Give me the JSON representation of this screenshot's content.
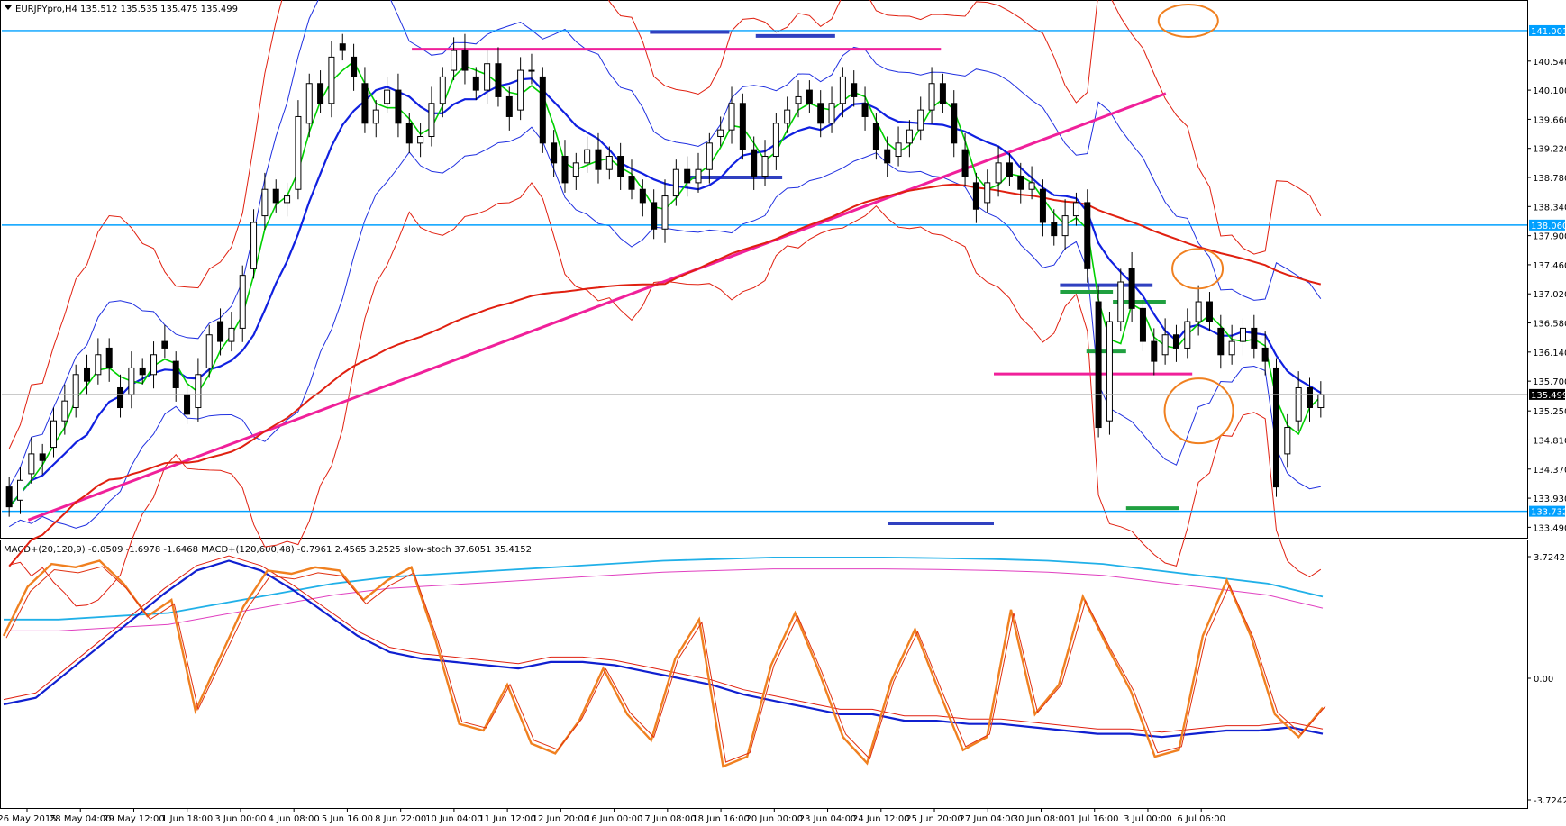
{
  "chart_data": {
    "type": "candlestick",
    "symbol_header": "EURJPYpro,H4  135.512 135.535 135.475 135.499",
    "current_price_label": "135.499",
    "price_axis": {
      "ticks": [
        "141.001",
        "140.540",
        "140.100",
        "139.660",
        "139.220",
        "138.780",
        "138.340",
        "138.060",
        "137.900",
        "137.460",
        "137.020",
        "136.580",
        "136.140",
        "135.700",
        "135.250",
        "134.810",
        "134.370",
        "133.930",
        "133.732",
        "133.490"
      ],
      "ylim": [
        133.4,
        141.3
      ]
    },
    "horizontal_levels": [
      {
        "price": 141.001,
        "label": "141.001",
        "color": "#00a0ff"
      },
      {
        "price": 138.06,
        "label": "138.060",
        "color": "#00a0ff"
      },
      {
        "price": 133.732,
        "label": "133.732",
        "color": "#00a0ff"
      }
    ],
    "time_axis": [
      "26 May 2015",
      "28 May 04:00",
      "29 May 12:00",
      "1 Jun 18:00",
      "3 Jun 00:00",
      "4 Jun 08:00",
      "5 Jun 16:00",
      "8 Jun 22:00",
      "10 Jun 04:00",
      "11 Jun 12:00",
      "12 Jun 20:00",
      "16 Jun 00:00",
      "17 Jun 08:00",
      "18 Jun 16:00",
      "20 Jun 00:00",
      "23 Jun 04:00",
      "24 Jun 12:00",
      "25 Jun 20:00",
      "27 Jun 04:00",
      "30 Jun 08:00",
      "1 Jul 16:00",
      "3 Jul 00:00",
      "6 Jul 06:00"
    ],
    "price_series": [
      [
        134.1,
        133.8
      ],
      [
        133.9,
        134.2
      ],
      [
        134.3,
        134.6
      ],
      [
        134.6,
        134.5
      ],
      [
        134.7,
        135.1
      ],
      [
        135.1,
        135.4
      ],
      [
        135.3,
        135.8
      ],
      [
        135.9,
        135.7
      ],
      [
        135.8,
        136.1
      ],
      [
        136.2,
        135.9
      ],
      [
        135.6,
        135.3
      ],
      [
        135.5,
        135.9
      ],
      [
        135.9,
        135.8
      ],
      [
        135.8,
        136.1
      ],
      [
        136.3,
        136.2
      ],
      [
        136.0,
        135.6
      ],
      [
        135.5,
        135.2
      ],
      [
        135.3,
        135.8
      ],
      [
        135.9,
        136.4
      ],
      [
        136.6,
        136.3
      ],
      [
        136.3,
        136.5
      ],
      [
        136.5,
        137.3
      ],
      [
        137.4,
        138.1
      ],
      [
        138.2,
        138.6
      ],
      [
        138.6,
        138.4
      ],
      [
        138.4,
        138.5
      ],
      [
        138.6,
        139.7
      ],
      [
        139.6,
        140.2
      ],
      [
        140.2,
        139.9
      ],
      [
        139.9,
        140.6
      ],
      [
        140.8,
        140.7
      ],
      [
        140.6,
        140.3
      ],
      [
        140.2,
        139.6
      ],
      [
        139.6,
        139.8
      ],
      [
        139.9,
        140.1
      ],
      [
        140.1,
        139.6
      ],
      [
        139.6,
        139.3
      ],
      [
        139.3,
        139.4
      ],
      [
        139.4,
        139.9
      ],
      [
        139.9,
        140.3
      ],
      [
        140.4,
        140.7
      ],
      [
        140.7,
        140.4
      ],
      [
        140.3,
        140.1
      ],
      [
        140.1,
        140.5
      ],
      [
        140.5,
        140.0
      ],
      [
        140.0,
        139.7
      ],
      [
        139.8,
        140.4
      ],
      [
        140.4,
        140.4
      ],
      [
        140.3,
        139.3
      ],
      [
        139.3,
        139.0
      ],
      [
        139.1,
        138.7
      ],
      [
        138.8,
        139.0
      ],
      [
        139.0,
        139.2
      ],
      [
        139.2,
        138.9
      ],
      [
        138.9,
        139.1
      ],
      [
        139.1,
        138.8
      ],
      [
        138.8,
        138.6
      ],
      [
        138.6,
        138.4
      ],
      [
        138.4,
        138.0
      ],
      [
        138.0,
        138.5
      ],
      [
        138.5,
        138.9
      ],
      [
        138.9,
        138.7
      ],
      [
        138.7,
        138.9
      ],
      [
        138.9,
        139.3
      ],
      [
        139.4,
        139.5
      ],
      [
        139.5,
        139.9
      ],
      [
        139.9,
        139.2
      ],
      [
        139.2,
        138.8
      ],
      [
        138.8,
        139.1
      ],
      [
        139.1,
        139.6
      ],
      [
        139.6,
        139.8
      ],
      [
        139.9,
        140.0
      ],
      [
        140.1,
        139.9
      ],
      [
        139.9,
        139.6
      ],
      [
        139.6,
        139.9
      ],
      [
        139.9,
        140.3
      ],
      [
        140.2,
        140.0
      ],
      [
        139.9,
        139.7
      ],
      [
        139.6,
        139.2
      ],
      [
        139.2,
        139.0
      ],
      [
        139.1,
        139.3
      ],
      [
        139.3,
        139.5
      ],
      [
        139.5,
        139.8
      ],
      [
        139.8,
        140.2
      ],
      [
        140.2,
        139.9
      ],
      [
        139.9,
        139.3
      ],
      [
        139.2,
        138.8
      ],
      [
        138.7,
        138.3
      ],
      [
        138.4,
        138.7
      ],
      [
        138.7,
        139.0
      ],
      [
        139.0,
        138.8
      ],
      [
        138.8,
        138.6
      ],
      [
        138.6,
        138.7
      ],
      [
        138.6,
        138.1
      ],
      [
        138.1,
        137.9
      ],
      [
        137.9,
        138.2
      ],
      [
        138.2,
        138.4
      ],
      [
        138.4,
        137.4
      ],
      [
        136.9,
        135.0
      ],
      [
        135.1,
        136.6
      ],
      [
        136.6,
        137.2
      ],
      [
        137.4,
        136.8
      ],
      [
        136.8,
        136.3
      ],
      [
        136.3,
        136.0
      ],
      [
        136.1,
        136.4
      ],
      [
        136.4,
        136.2
      ],
      [
        136.2,
        136.6
      ],
      [
        136.6,
        136.9
      ],
      [
        136.9,
        136.6
      ],
      [
        136.5,
        136.1
      ],
      [
        136.1,
        136.3
      ],
      [
        136.3,
        136.5
      ],
      [
        136.5,
        136.2
      ],
      [
        136.2,
        136.0
      ],
      [
        135.9,
        134.1
      ],
      [
        134.6,
        135.0
      ],
      [
        135.1,
        135.6
      ],
      [
        135.6,
        135.3
      ],
      [
        135.3,
        135.5
      ]
    ],
    "indicators": {
      "label": "MACD+(20,120,9) -0.0509 -1.6978 -1.6468  MACD+(120,600,48) -0.7961 2.4565 3.2525  slow-stoch 37.6051 35.4152",
      "ticks": [
        "3.7242",
        "0.00",
        "-3.7242"
      ],
      "ylim": [
        -3.7242,
        3.7242
      ],
      "macd_fast": [
        -0.8,
        -0.6,
        0.2,
        1.0,
        1.8,
        2.6,
        3.3,
        3.6,
        3.3,
        2.7,
        2.0,
        1.3,
        0.8,
        0.6,
        0.5,
        0.4,
        0.3,
        0.5,
        0.5,
        0.4,
        0.2,
        0.0,
        -0.2,
        -0.5,
        -0.7,
        -0.9,
        -1.1,
        -1.1,
        -1.3,
        -1.3,
        -1.4,
        -1.4,
        -1.5,
        -1.6,
        -1.7,
        -1.7,
        -1.8,
        -1.7,
        -1.6,
        -1.6,
        -1.5,
        -1.7
      ],
      "macd_slow": [
        1.8,
        1.8,
        1.9,
        2.0,
        2.3,
        2.6,
        2.9,
        3.1,
        3.2,
        3.3,
        3.4,
        3.5,
        3.6,
        3.65,
        3.7,
        3.7,
        3.7,
        3.68,
        3.65,
        3.6,
        3.5,
        3.3,
        3.1,
        2.9,
        2.5
      ],
      "stochastic": [
        1.3,
        2.8,
        3.5,
        3.4,
        3.6,
        2.9,
        1.9,
        2.4,
        -1.0,
        0.6,
        2.2,
        3.3,
        3.2,
        3.4,
        3.3,
        2.4,
        3.0,
        3.4,
        1.2,
        -1.4,
        -1.6,
        -0.2,
        -2.0,
        -2.3,
        -1.3,
        0.3,
        -1.1,
        -1.9,
        0.6,
        1.8,
        -2.7,
        -2.4,
        0.4,
        2.0,
        0.2,
        -1.8,
        -2.6,
        -0.1,
        1.5,
        -0.4,
        -2.2,
        -1.8,
        2.1,
        -1.1,
        -0.2,
        2.5,
        1.0,
        -0.4,
        -2.4,
        -2.2,
        1.3,
        3.0,
        1.3,
        -1.1,
        -1.8,
        -0.9
      ]
    }
  }
}
